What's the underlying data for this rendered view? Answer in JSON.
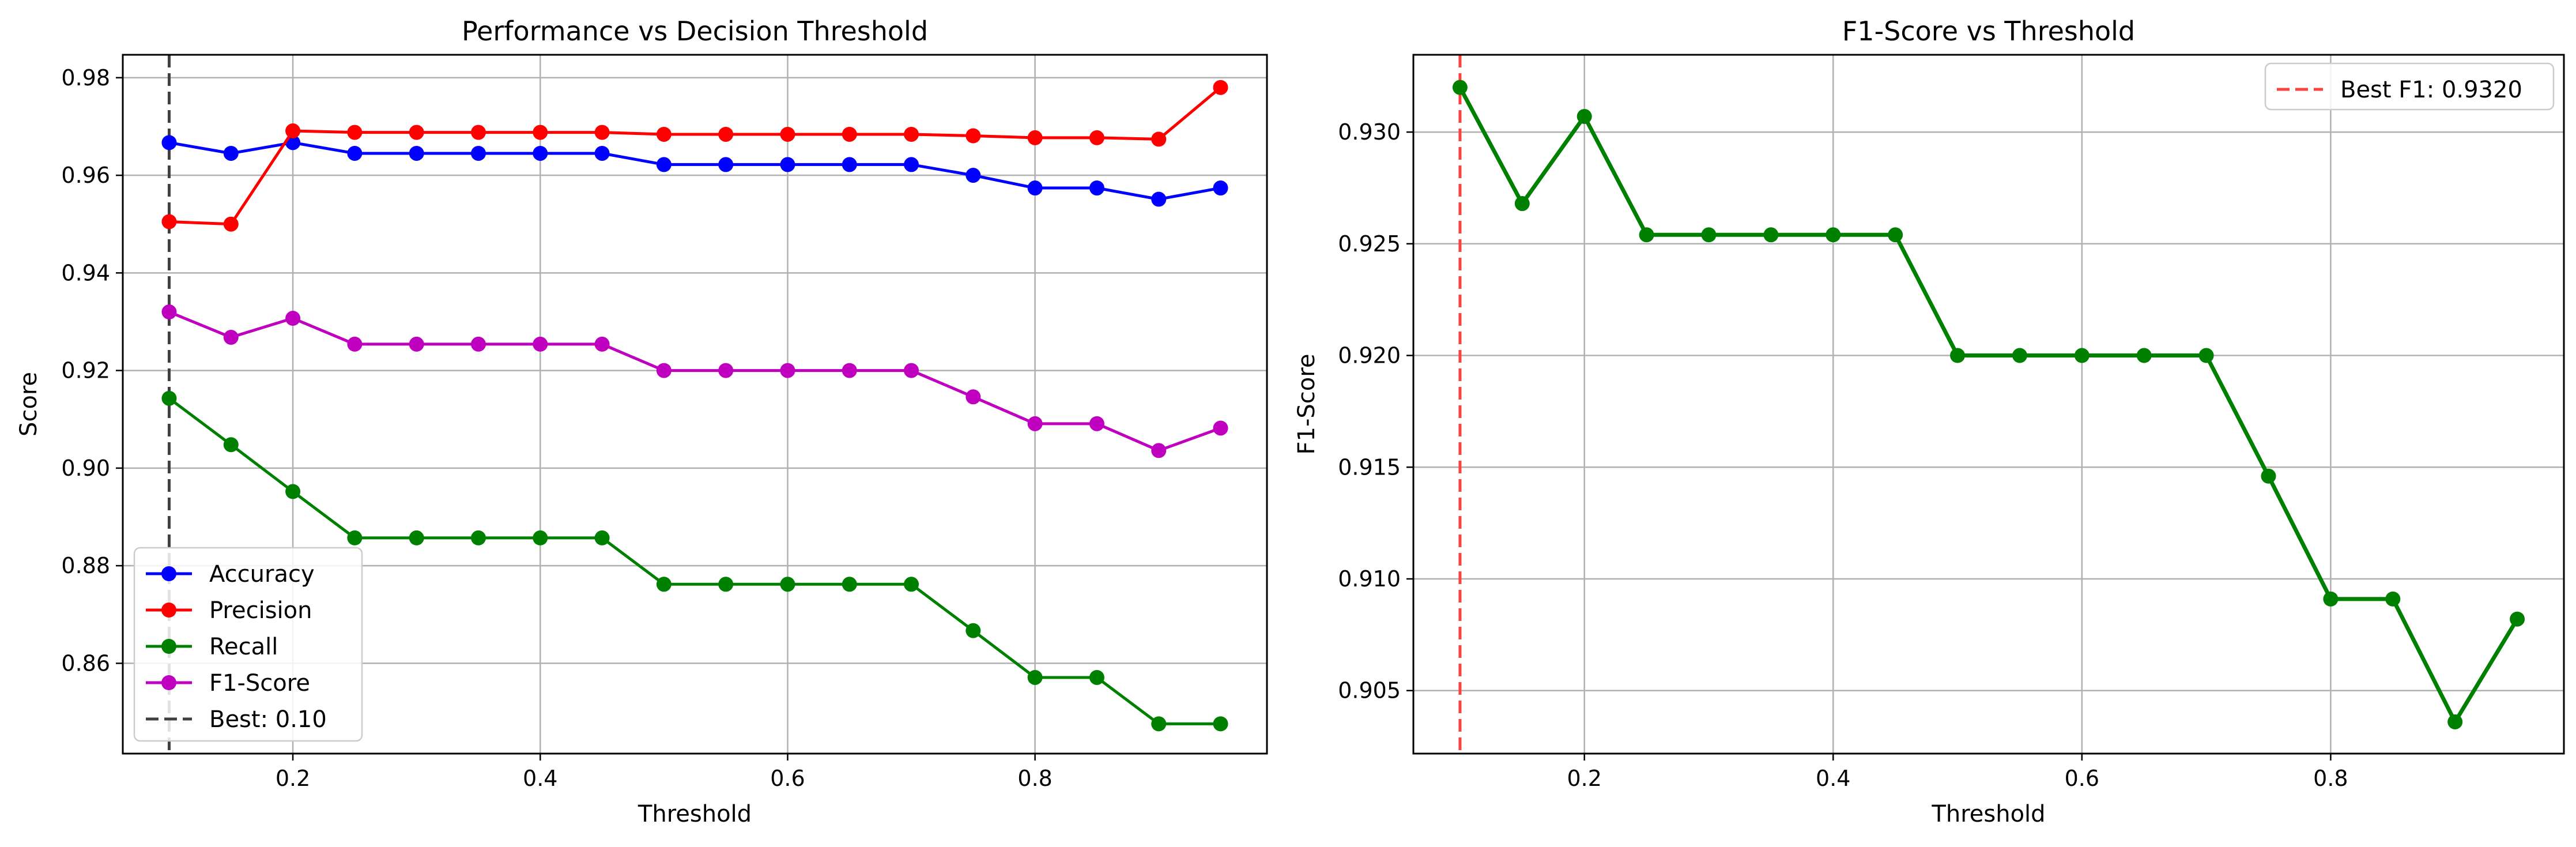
{
  "chart_data": [
    {
      "type": "line",
      "title": "Performance vs Decision Threshold",
      "xlabel": "Threshold",
      "ylabel": "Score",
      "xlim": [
        0.0625,
        0.9875
      ],
      "ylim": [
        0.8415,
        0.9847
      ],
      "xticks": [
        0.2,
        0.4,
        0.6,
        0.8
      ],
      "xtick_labels": [
        "0.2",
        "0.4",
        "0.6",
        "0.8"
      ],
      "yticks": [
        0.86,
        0.88,
        0.9,
        0.92,
        0.94,
        0.96,
        0.98
      ],
      "ytick_labels": [
        "0.86",
        "0.88",
        "0.90",
        "0.92",
        "0.94",
        "0.96",
        "0.98"
      ],
      "grid": true,
      "legend_position": "lower-left",
      "x": [
        0.1,
        0.15,
        0.2,
        0.25,
        0.3,
        0.35,
        0.4,
        0.45,
        0.5,
        0.55,
        0.6,
        0.65,
        0.7,
        0.75,
        0.8,
        0.85,
        0.9,
        0.95
      ],
      "series": [
        {
          "name": "Accuracy",
          "color": "#0000ff",
          "values": [
            0.9667,
            0.9645,
            0.9667,
            0.9645,
            0.9645,
            0.9645,
            0.9645,
            0.9645,
            0.9622,
            0.9622,
            0.9622,
            0.9622,
            0.9622,
            0.96,
            0.9574,
            0.9574,
            0.9551,
            0.9574
          ]
        },
        {
          "name": "Precision",
          "color": "#ff0000",
          "values": [
            0.9505,
            0.95,
            0.9691,
            0.9688,
            0.9688,
            0.9688,
            0.9688,
            0.9688,
            0.9684,
            0.9684,
            0.9684,
            0.9684,
            0.9684,
            0.9681,
            0.9677,
            0.9677,
            0.9674,
            0.978
          ]
        },
        {
          "name": "Recall",
          "color": "#008000",
          "values": [
            0.9143,
            0.9048,
            0.8952,
            0.8857,
            0.8857,
            0.8857,
            0.8857,
            0.8857,
            0.8762,
            0.8762,
            0.8762,
            0.8762,
            0.8762,
            0.8667,
            0.8571,
            0.8571,
            0.8476,
            0.8476
          ]
        },
        {
          "name": "F1-Score",
          "color": "#bf00bf",
          "values": [
            0.932,
            0.9268,
            0.9307,
            0.9254,
            0.9254,
            0.9254,
            0.9254,
            0.9254,
            0.92,
            0.92,
            0.92,
            0.92,
            0.92,
            0.9146,
            0.9091,
            0.9091,
            0.9036,
            0.9082
          ]
        }
      ],
      "reference_line": {
        "axis": "x",
        "value": 0.1,
        "name": "Best: 0.10",
        "color": "#404040",
        "style": "dashed"
      }
    },
    {
      "type": "line",
      "title": "F1-Score vs Threshold",
      "xlabel": "Threshold",
      "ylabel": "F1-Score",
      "xlim": [
        0.0625,
        0.9875
      ],
      "ylim": [
        0.90218,
        0.93346
      ],
      "xticks": [
        0.2,
        0.4,
        0.6,
        0.8
      ],
      "xtick_labels": [
        "0.2",
        "0.4",
        "0.6",
        "0.8"
      ],
      "yticks": [
        0.905,
        0.91,
        0.915,
        0.92,
        0.925,
        0.93
      ],
      "ytick_labels": [
        "0.905",
        "0.910",
        "0.915",
        "0.920",
        "0.925",
        "0.930"
      ],
      "grid": true,
      "legend_position": "top-right",
      "x": [
        0.1,
        0.15,
        0.2,
        0.25,
        0.3,
        0.35,
        0.4,
        0.45,
        0.5,
        0.55,
        0.6,
        0.65,
        0.7,
        0.75,
        0.8,
        0.85,
        0.9,
        0.95
      ],
      "series": [
        {
          "name": "",
          "color": "#008000",
          "values": [
            0.932,
            0.9268,
            0.9307,
            0.9254,
            0.9254,
            0.9254,
            0.9254,
            0.9254,
            0.92,
            0.92,
            0.92,
            0.92,
            0.92,
            0.9146,
            0.9091,
            0.9091,
            0.9036,
            0.9082
          ]
        }
      ],
      "reference_line": {
        "axis": "x",
        "value": 0.1,
        "name": "Best F1: 0.9320",
        "color": "#ff4040",
        "style": "dashed"
      }
    }
  ]
}
